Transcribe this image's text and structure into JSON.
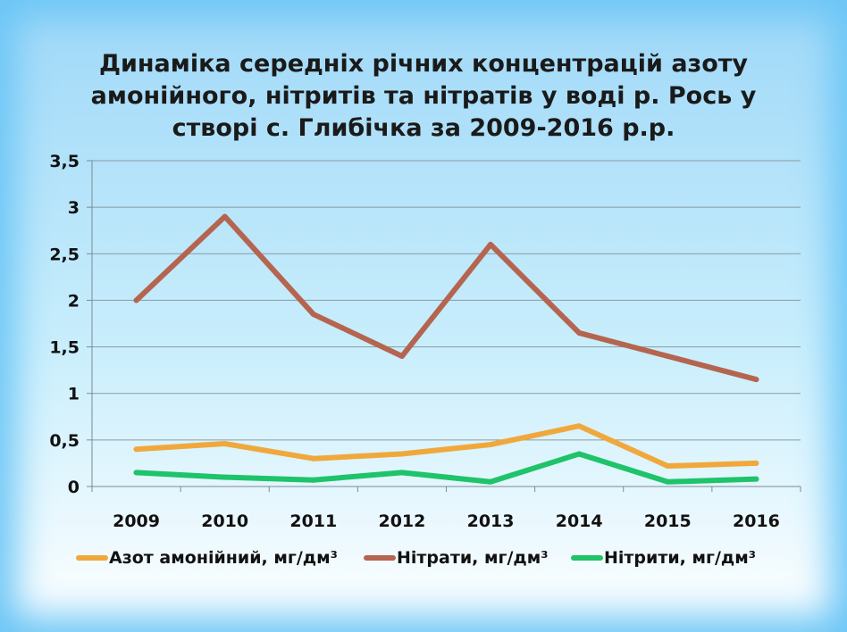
{
  "chart_data": {
    "type": "line",
    "title_lines": [
      "Динаміка середніх річних концентрацій азоту",
      "амонійного, нітритів та нітратів у воді р. Рось у",
      "створі с. Глибічка за 2009-2016 р.р."
    ],
    "categories": [
      "2009",
      "2010",
      "2011",
      "2012",
      "2013",
      "2014",
      "2015",
      "2016"
    ],
    "y_ticks": [
      "0",
      "0,5",
      "1",
      "1,5",
      "2",
      "2,5",
      "3",
      "3,5"
    ],
    "ylim": [
      0,
      3.5
    ],
    "grid": true,
    "legend_position": "bottom",
    "series": [
      {
        "name": "Азот амонійний, мг/дм³",
        "color": "#f0a83c",
        "values": [
          0.4,
          0.46,
          0.3,
          0.35,
          0.45,
          0.65,
          0.22,
          0.25
        ]
      },
      {
        "name": "Нітрати, мг/дм³",
        "color": "#b5654f",
        "values": [
          2.0,
          2.9,
          1.85,
          1.4,
          2.6,
          1.65,
          1.4,
          1.15
        ]
      },
      {
        "name": "Нітрити, мг/дм³",
        "color": "#1ec36a",
        "values": [
          0.15,
          0.1,
          0.07,
          0.15,
          0.05,
          0.35,
          0.05,
          0.08
        ]
      }
    ]
  }
}
